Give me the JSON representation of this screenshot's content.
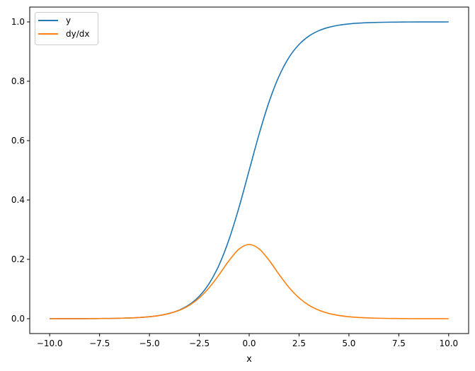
{
  "chart_data": {
    "type": "line",
    "title": "",
    "xlabel": "x",
    "ylabel": "",
    "xlim": [
      -11,
      11
    ],
    "ylim": [
      -0.05,
      1.05
    ],
    "grid": false,
    "legend_position": "top-left",
    "x_ticks": [
      "−10.0",
      "−7.5",
      "−5.0",
      "−2.5",
      "0.0",
      "2.5",
      "5.0",
      "7.5",
      "10.0"
    ],
    "x_tick_values": [
      -10,
      -7.5,
      -5,
      -2.5,
      0,
      2.5,
      5,
      7.5,
      10
    ],
    "y_ticks": [
      "0.0",
      "0.2",
      "0.4",
      "0.6",
      "0.8",
      "1.0"
    ],
    "y_tick_values": [
      0,
      0.2,
      0.4,
      0.6,
      0.8,
      1.0
    ],
    "x": [
      -10,
      -9.5,
      -9,
      -8.5,
      -8,
      -7.5,
      -7,
      -6.5,
      -6,
      -5.5,
      -5,
      -4.5,
      -4,
      -3.5,
      -3,
      -2.5,
      -2,
      -1.5,
      -1,
      -0.5,
      0,
      0.5,
      1,
      1.5,
      2,
      2.5,
      3,
      3.5,
      4,
      4.5,
      5,
      5.5,
      6,
      6.5,
      7,
      7.5,
      8,
      8.5,
      9,
      9.5,
      10
    ],
    "series": [
      {
        "name": "y",
        "color": "#1f77b4",
        "values": [
          0.0,
          0.0001,
          0.0001,
          0.0002,
          0.0003,
          0.0006,
          0.0009,
          0.0015,
          0.0025,
          0.0041,
          0.0067,
          0.011,
          0.018,
          0.0293,
          0.0474,
          0.0759,
          0.1192,
          0.1824,
          0.2689,
          0.3775,
          0.5,
          0.6225,
          0.7311,
          0.8176,
          0.8808,
          0.9241,
          0.9526,
          0.9707,
          0.982,
          0.989,
          0.9933,
          0.9959,
          0.9975,
          0.9985,
          0.9991,
          0.9994,
          0.9997,
          0.9998,
          0.9999,
          0.9999,
          1.0
        ]
      },
      {
        "name": "dy/dx",
        "color": "#ff7f0e",
        "values": [
          0.0,
          0.0001,
          0.0001,
          0.0002,
          0.0003,
          0.0006,
          0.0009,
          0.0015,
          0.0025,
          0.0041,
          0.0066,
          0.0109,
          0.0177,
          0.0285,
          0.0452,
          0.0701,
          0.105,
          0.1491,
          0.1966,
          0.235,
          0.25,
          0.235,
          0.1966,
          0.1491,
          0.105,
          0.0701,
          0.0452,
          0.0285,
          0.0177,
          0.0109,
          0.0066,
          0.0041,
          0.0025,
          0.0015,
          0.0009,
          0.0006,
          0.0003,
          0.0002,
          0.0001,
          0.0001,
          0.0
        ]
      }
    ]
  }
}
